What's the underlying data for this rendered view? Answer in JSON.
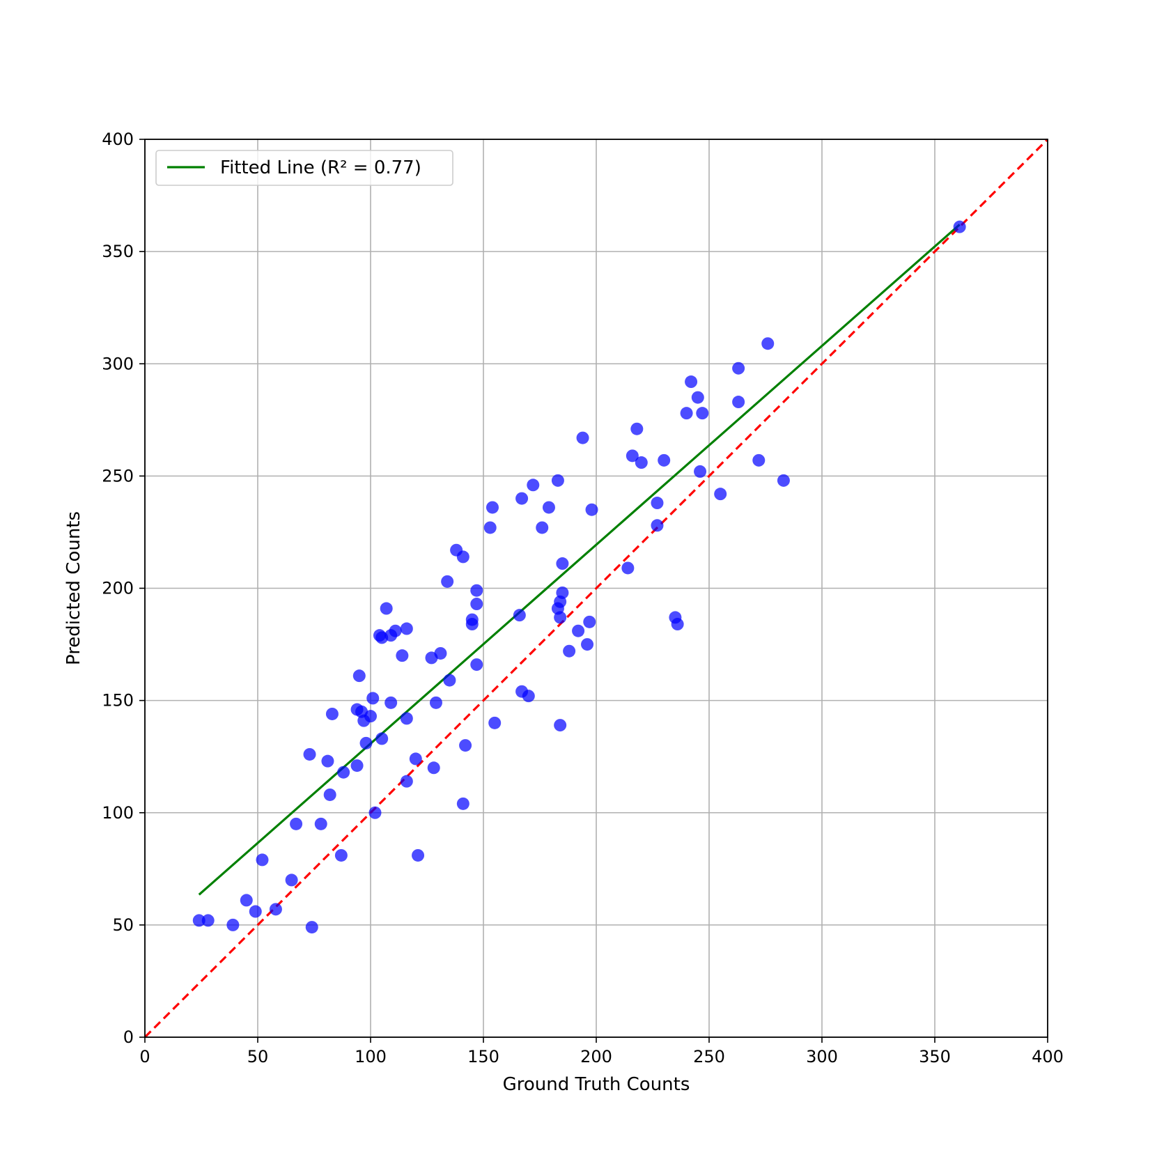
{
  "chart_data": {
    "type": "scatter",
    "title": "",
    "xlabel": "Ground Truth Counts",
    "ylabel": "Predicted Counts",
    "xlim": [
      0,
      400
    ],
    "ylim": [
      0,
      400
    ],
    "xticks": [
      0,
      50,
      100,
      150,
      200,
      250,
      300,
      350,
      400
    ],
    "yticks": [
      0,
      50,
      100,
      150,
      200,
      250,
      300,
      350,
      400
    ],
    "grid": true,
    "legend_position": "top-left",
    "colors": {
      "points": "#0000ff",
      "fit_line": "#008000",
      "identity_line": "#ff0000"
    },
    "fitted_line": {
      "label": "Fitted Line (R² = 0.77)",
      "x": [
        24,
        361
      ],
      "y": [
        63.5,
        362
      ]
    },
    "identity_line": {
      "x": [
        0,
        400
      ],
      "y": [
        0,
        400
      ]
    },
    "points": [
      [
        24,
        52
      ],
      [
        28,
        52
      ],
      [
        39,
        50
      ],
      [
        45,
        61
      ],
      [
        49,
        56
      ],
      [
        52,
        79
      ],
      [
        58,
        57
      ],
      [
        65,
        70
      ],
      [
        67,
        95
      ],
      [
        73,
        126
      ],
      [
        74,
        49
      ],
      [
        78,
        95
      ],
      [
        81,
        123
      ],
      [
        82,
        108
      ],
      [
        83,
        144
      ],
      [
        87,
        81
      ],
      [
        88,
        118
      ],
      [
        94,
        121
      ],
      [
        94,
        146
      ],
      [
        95,
        161
      ],
      [
        96,
        145
      ],
      [
        97,
        141
      ],
      [
        98,
        131
      ],
      [
        100,
        143
      ],
      [
        101,
        151
      ],
      [
        102,
        100
      ],
      [
        104,
        179
      ],
      [
        105,
        178
      ],
      [
        105,
        133
      ],
      [
        107,
        191
      ],
      [
        109,
        179
      ],
      [
        109,
        149
      ],
      [
        111,
        181
      ],
      [
        114,
        170
      ],
      [
        116,
        182
      ],
      [
        116,
        142
      ],
      [
        116,
        114
      ],
      [
        120,
        124
      ],
      [
        121,
        81
      ],
      [
        127,
        169
      ],
      [
        128,
        120
      ],
      [
        129,
        149
      ],
      [
        131,
        171
      ],
      [
        134,
        203
      ],
      [
        135,
        159
      ],
      [
        138,
        217
      ],
      [
        141,
        214
      ],
      [
        141,
        104
      ],
      [
        142,
        130
      ],
      [
        145,
        186
      ],
      [
        145,
        184
      ],
      [
        147,
        199
      ],
      [
        147,
        193
      ],
      [
        147,
        166
      ],
      [
        153,
        227
      ],
      [
        154,
        236
      ],
      [
        155,
        140
      ],
      [
        166,
        188
      ],
      [
        167,
        240
      ],
      [
        167,
        154
      ],
      [
        170,
        152
      ],
      [
        172,
        246
      ],
      [
        176,
        227
      ],
      [
        179,
        236
      ],
      [
        183,
        248
      ],
      [
        183,
        191
      ],
      [
        184,
        194
      ],
      [
        184,
        187
      ],
      [
        184,
        139
      ],
      [
        185,
        211
      ],
      [
        185,
        198
      ],
      [
        188,
        172
      ],
      [
        192,
        181
      ],
      [
        194,
        267
      ],
      [
        196,
        175
      ],
      [
        197,
        185
      ],
      [
        198,
        235
      ],
      [
        214,
        209
      ],
      [
        216,
        259
      ],
      [
        218,
        271
      ],
      [
        220,
        256
      ],
      [
        227,
        238
      ],
      [
        227,
        228
      ],
      [
        230,
        257
      ],
      [
        235,
        187
      ],
      [
        236,
        184
      ],
      [
        240,
        278
      ],
      [
        242,
        292
      ],
      [
        245,
        285
      ],
      [
        246,
        252
      ],
      [
        247,
        278
      ],
      [
        255,
        242
      ],
      [
        263,
        298
      ],
      [
        263,
        283
      ],
      [
        272,
        257
      ],
      [
        276,
        309
      ],
      [
        283,
        248
      ],
      [
        361,
        361
      ]
    ]
  }
}
